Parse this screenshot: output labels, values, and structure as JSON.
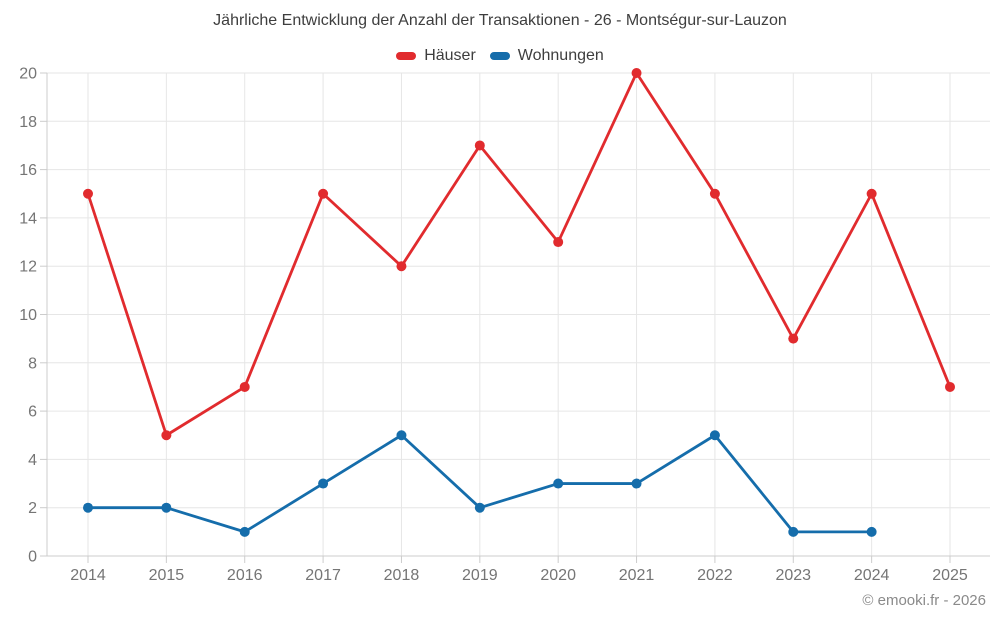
{
  "footer": {
    "copyright": "© emooki.fr - 2026"
  },
  "chart_data": {
    "type": "line",
    "title": "Jährliche Entwicklung der Anzahl der Transaktionen - 26 - Montségur-sur-Lauzon",
    "categories": [
      "2014",
      "2015",
      "2016",
      "2017",
      "2018",
      "2019",
      "2020",
      "2021",
      "2022",
      "2023",
      "2024",
      "2025"
    ],
    "series": [
      {
        "name": "Häuser",
        "color": "#e12b2e",
        "values": [
          15,
          5,
          7,
          15,
          12,
          17,
          13,
          20,
          15,
          9,
          15,
          7
        ]
      },
      {
        "name": "Wohnungen",
        "color": "#156dab",
        "values": [
          2,
          2,
          1,
          3,
          5,
          2,
          3,
          3,
          5,
          1,
          1,
          null
        ]
      }
    ],
    "xlabel": "",
    "ylabel": "",
    "ylim": [
      0,
      20
    ],
    "ytick_step": 2,
    "grid": true,
    "legend_position": "top",
    "marker": "circle",
    "grid_color": "#e6e6e6",
    "axis_color": "#cccccc"
  }
}
